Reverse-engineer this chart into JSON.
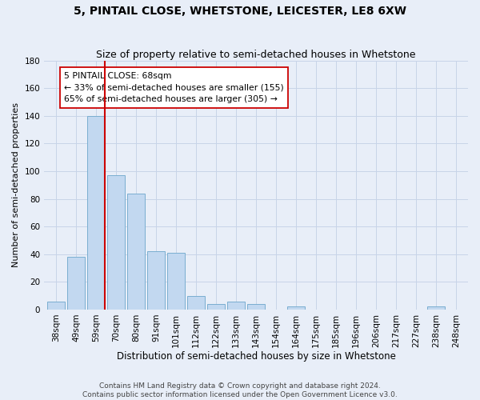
{
  "title": "5, PINTAIL CLOSE, WHETSTONE, LEICESTER, LE8 6XW",
  "subtitle": "Size of property relative to semi-detached houses in Whetstone",
  "xlabel": "Distribution of semi-detached houses by size in Whetstone",
  "ylabel": "Number of semi-detached properties",
  "categories": [
    "38sqm",
    "49sqm",
    "59sqm",
    "70sqm",
    "80sqm",
    "91sqm",
    "101sqm",
    "112sqm",
    "122sqm",
    "133sqm",
    "143sqm",
    "154sqm",
    "164sqm",
    "175sqm",
    "185sqm",
    "196sqm",
    "206sqm",
    "217sqm",
    "227sqm",
    "238sqm",
    "248sqm"
  ],
  "values": [
    6,
    38,
    140,
    97,
    84,
    42,
    41,
    10,
    4,
    6,
    4,
    0,
    2,
    0,
    0,
    0,
    0,
    0,
    0,
    2,
    0
  ],
  "bar_color": "#c2d8f0",
  "bar_edge_color": "#7aaed0",
  "vline_color": "#cc0000",
  "annotation_line1": "5 PINTAIL CLOSE: 68sqm",
  "annotation_line2": "← 33% of semi-detached houses are smaller (155)",
  "annotation_line3": "65% of semi-detached houses are larger (305) →",
  "ylim": [
    0,
    180
  ],
  "yticks": [
    0,
    20,
    40,
    60,
    80,
    100,
    120,
    140,
    160,
    180
  ],
  "grid_color": "#c8d4e8",
  "background_color": "#e8eef8",
  "title_fontsize": 10,
  "subtitle_fontsize": 9,
  "xlabel_fontsize": 8.5,
  "ylabel_fontsize": 8,
  "tick_fontsize": 7.5,
  "footer": "Contains HM Land Registry data © Crown copyright and database right 2024.\nContains public sector information licensed under the Open Government Licence v3.0.",
  "footer_fontsize": 6.5
}
